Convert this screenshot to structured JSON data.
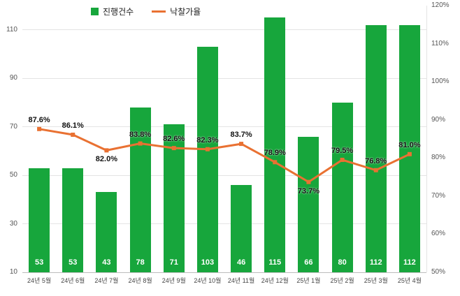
{
  "chart_data": {
    "type": "bar",
    "title": "",
    "categories": [
      "24년 5월",
      "24년 6월",
      "24년 7월",
      "24년 8월",
      "24년 9월",
      "24년 10월",
      "24년 11월",
      "24년 12월",
      "25년 1월",
      "25년 2월",
      "25년 3월",
      "25년 4월"
    ],
    "series": [
      {
        "name": "진행건수",
        "type": "bar",
        "color": "#17a63c",
        "values": [
          53,
          53,
          43,
          78,
          71,
          103,
          46,
          115,
          66,
          80,
          112,
          112
        ]
      },
      {
        "name": "낙찰가율",
        "type": "line",
        "color": "#e97132",
        "values": [
          87.6,
          86.1,
          82.0,
          83.8,
          82.6,
          82.3,
          83.7,
          78.9,
          73.7,
          79.5,
          76.8,
          81.0
        ],
        "labels": [
          "87.6%",
          "86.1%",
          "82.0%",
          "83.8%",
          "82.6%",
          "82.3%",
          "83.7%",
          "78.9%",
          "73.7%",
          "79.5%",
          "76.8%",
          "81.0%"
        ],
        "label_pos": [
          "above",
          "above",
          "below",
          "above",
          "above",
          "above",
          "above",
          "above",
          "below",
          "above",
          "above",
          "above"
        ]
      }
    ],
    "left_axis": {
      "min": 10,
      "max": 120,
      "ticks": [
        10,
        30,
        50,
        70,
        90,
        110
      ]
    },
    "right_axis": {
      "min": 50,
      "max": 120,
      "ticks": [
        50,
        60,
        70,
        80,
        90,
        100,
        110,
        120
      ],
      "suffix": "%"
    },
    "grid": true,
    "legend_position": "top"
  }
}
